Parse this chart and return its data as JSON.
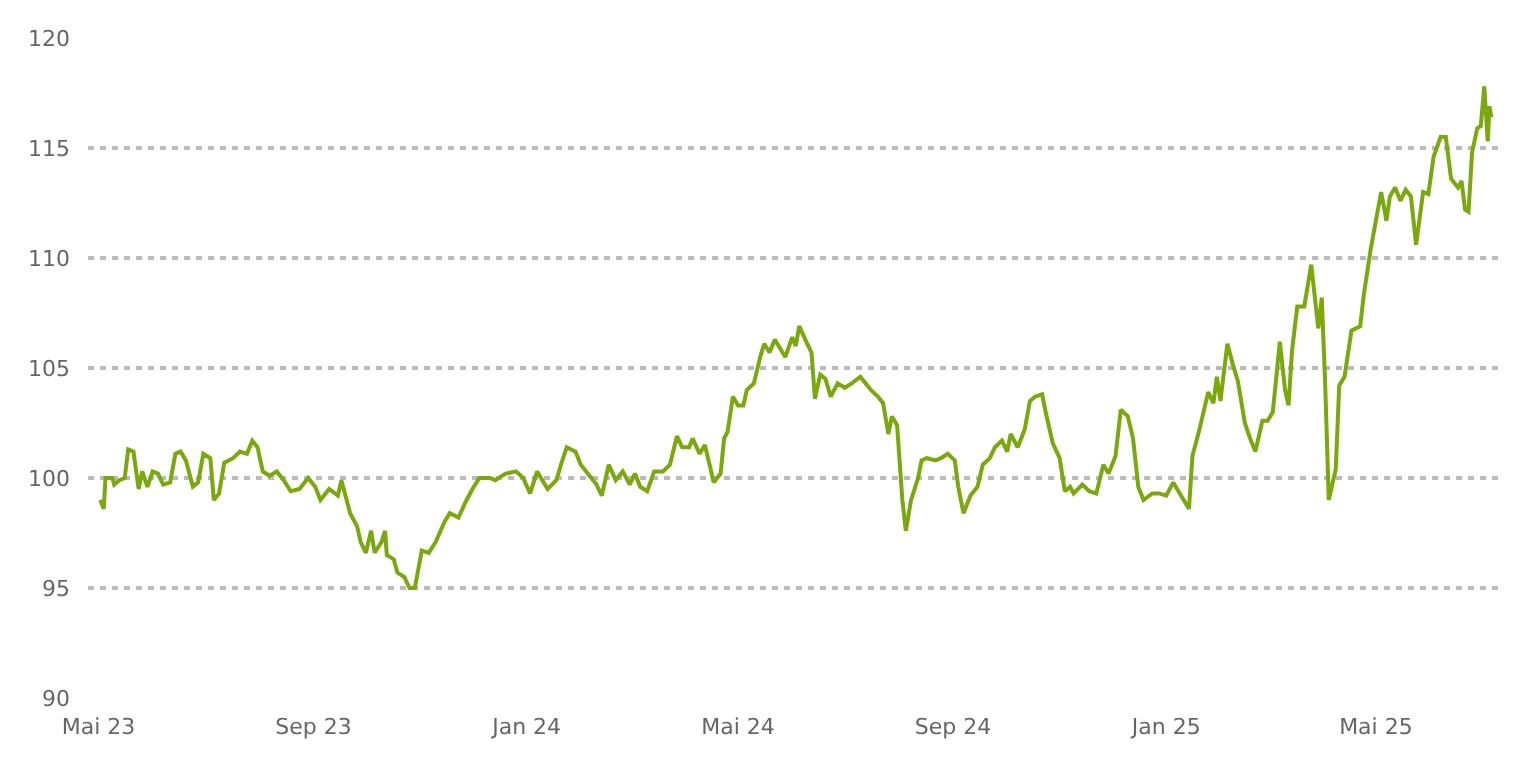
{
  "chart_data": {
    "type": "line",
    "color": "#7aa80e",
    "grid": "y",
    "legend": false,
    "line_style": "solid",
    "marker": "none",
    "xlim": [
      "2023-04-25",
      "2025-07-11"
    ],
    "xticks": [
      {
        "value": "2023-05-01",
        "label": "Mai 23"
      },
      {
        "value": "2023-09-01",
        "label": "Sep 23"
      },
      {
        "value": "2024-01-01",
        "label": "Jan 24"
      },
      {
        "value": "2024-05-01",
        "label": "Mai 24"
      },
      {
        "value": "2024-09-01",
        "label": "Sep 24"
      },
      {
        "value": "2025-01-01",
        "label": "Jan 25"
      },
      {
        "value": "2025-05-01",
        "label": "Mai 25"
      }
    ],
    "ylim": [
      90,
      120
    ],
    "yticks": [
      90,
      95,
      100,
      105,
      110,
      115,
      120
    ],
    "x": [
      "2023-05-02",
      "2023-05-04",
      "2023-05-05",
      "2023-05-09",
      "2023-05-10",
      "2023-05-13",
      "2023-05-16",
      "2023-05-18",
      "2023-05-21",
      "2023-05-24",
      "2023-05-26",
      "2023-05-29",
      "2023-06-01",
      "2023-06-04",
      "2023-06-07",
      "2023-06-11",
      "2023-06-14",
      "2023-06-17",
      "2023-06-20",
      "2023-06-24",
      "2023-06-27",
      "2023-06-30",
      "2023-07-04",
      "2023-07-06",
      "2023-07-09",
      "2023-07-12",
      "2023-07-17",
      "2023-07-21",
      "2023-07-25",
      "2023-07-28",
      "2023-07-31",
      "2023-08-03",
      "2023-08-07",
      "2023-08-11",
      "2023-08-15",
      "2023-08-19",
      "2023-08-24",
      "2023-08-29",
      "2023-09-02",
      "2023-09-05",
      "2023-09-10",
      "2023-09-15",
      "2023-09-17",
      "2023-09-19",
      "2023-09-22",
      "2023-09-26",
      "2023-09-28",
      "2023-10-01",
      "2023-10-04",
      "2023-10-06",
      "2023-10-10",
      "2023-10-12",
      "2023-10-13",
      "2023-10-17",
      "2023-10-19",
      "2023-10-23",
      "2023-10-26",
      "2023-10-29",
      "2023-11-02",
      "2023-11-06",
      "2023-11-10",
      "2023-11-15",
      "2023-11-18",
      "2023-11-23",
      "2023-11-27",
      "2023-12-01",
      "2023-12-05",
      "2023-12-11",
      "2023-12-14",
      "2023-12-20",
      "2023-12-26",
      "2023-12-30",
      "2024-01-03",
      "2024-01-07",
      "2024-01-13",
      "2024-01-18",
      "2024-01-21",
      "2024-01-24",
      "2024-01-29",
      "2024-02-01",
      "2024-02-06",
      "2024-02-10",
      "2024-02-13",
      "2024-02-17",
      "2024-02-21",
      "2024-02-25",
      "2024-02-29",
      "2024-03-03",
      "2024-03-06",
      "2024-03-10",
      "2024-03-14",
      "2024-03-19",
      "2024-03-23",
      "2024-03-27",
      "2024-03-30",
      "2024-04-03",
      "2024-04-05",
      "2024-04-09",
      "2024-04-12",
      "2024-04-15",
      "2024-04-17",
      "2024-04-21",
      "2024-04-23",
      "2024-04-25",
      "2024-04-28",
      "2024-05-01",
      "2024-05-04",
      "2024-05-06",
      "2024-05-10",
      "2024-05-14",
      "2024-05-16",
      "2024-05-19",
      "2024-05-22",
      "2024-05-25",
      "2024-05-28",
      "2024-06-01",
      "2024-06-03",
      "2024-06-05",
      "2024-06-09",
      "2024-06-12",
      "2024-06-14",
      "2024-06-17",
      "2024-06-20",
      "2024-06-23",
      "2024-06-27",
      "2024-07-01",
      "2024-07-05",
      "2024-07-10",
      "2024-07-12",
      "2024-07-16",
      "2024-07-20",
      "2024-07-23",
      "2024-07-26",
      "2024-07-28",
      "2024-07-31",
      "2024-08-03",
      "2024-08-05",
      "2024-08-08",
      "2024-08-12",
      "2024-08-14",
      "2024-08-17",
      "2024-08-22",
      "2024-08-25",
      "2024-08-29",
      "2024-09-02",
      "2024-09-04",
      "2024-09-07",
      "2024-09-11",
      "2024-09-15",
      "2024-09-18",
      "2024-09-22",
      "2024-09-25",
      "2024-09-29",
      "2024-10-02",
      "2024-10-04",
      "2024-10-08",
      "2024-10-12",
      "2024-10-15",
      "2024-10-18",
      "2024-10-22",
      "2024-10-24",
      "2024-10-28",
      "2024-11-01",
      "2024-11-04",
      "2024-11-07",
      "2024-11-09",
      "2024-11-14",
      "2024-11-18",
      "2024-11-22",
      "2024-11-26",
      "2024-11-29",
      "2024-12-03",
      "2024-12-06",
      "2024-12-10",
      "2024-12-13",
      "2024-12-16",
      "2024-12-19",
      "2024-12-24",
      "2024-12-28",
      "2025-01-01",
      "2025-01-05",
      "2025-01-08",
      "2025-01-11",
      "2025-01-14",
      "2025-01-16",
      "2025-01-20",
      "2025-01-25",
      "2025-01-28",
      "2025-01-30",
      "2025-02-01",
      "2025-02-05",
      "2025-02-08",
      "2025-02-11",
      "2025-02-15",
      "2025-02-18",
      "2025-02-21",
      "2025-02-25",
      "2025-02-28",
      "2025-03-03",
      "2025-03-07",
      "2025-03-10",
      "2025-03-12",
      "2025-03-14",
      "2025-03-17",
      "2025-03-21",
      "2025-03-25",
      "2025-03-29",
      "2025-03-31",
      "2025-04-02",
      "2025-04-04",
      "2025-04-08",
      "2025-04-10",
      "2025-04-13",
      "2025-04-17",
      "2025-04-22",
      "2025-04-24",
      "2025-04-28",
      "2025-05-01",
      "2025-05-04",
      "2025-05-07",
      "2025-05-09",
      "2025-05-12",
      "2025-05-15",
      "2025-05-18",
      "2025-05-21",
      "2025-05-24",
      "2025-05-28",
      "2025-05-31",
      "2025-06-03",
      "2025-06-07",
      "2025-06-10",
      "2025-06-13",
      "2025-06-17",
      "2025-06-19",
      "2025-06-21",
      "2025-06-23",
      "2025-06-25",
      "2025-06-28",
      "2025-06-30",
      "2025-07-02",
      "2025-07-04",
      "2025-07-05",
      "2025-07-06"
    ],
    "values": [
      99.0,
      98.6,
      100.0,
      100.0,
      99.7,
      99.9,
      100.0,
      101.3,
      101.2,
      99.5,
      100.3,
      99.6,
      100.3,
      100.2,
      99.7,
      99.8,
      101.1,
      101.2,
      100.8,
      99.6,
      99.8,
      101.1,
      100.9,
      99.0,
      99.3,
      100.7,
      100.9,
      101.2,
      101.1,
      101.7,
      101.4,
      100.3,
      100.1,
      100.3,
      99.9,
      99.4,
      99.5,
      100.0,
      99.6,
      99.0,
      99.5,
      99.2,
      99.9,
      99.3,
      98.4,
      97.8,
      97.1,
      96.6,
      97.6,
      96.6,
      97.1,
      97.6,
      96.5,
      96.3,
      95.7,
      95.5,
      95.0,
      95.0,
      96.7,
      96.6,
      97.1,
      98.0,
      98.4,
      98.2,
      98.9,
      99.5,
      100.0,
      100.0,
      99.9,
      100.2,
      100.3,
      100.0,
      99.3,
      100.3,
      99.5,
      99.9,
      100.7,
      101.4,
      101.2,
      100.6,
      100.1,
      99.7,
      99.2,
      100.6,
      99.9,
      100.3,
      99.7,
      100.2,
      99.6,
      99.4,
      100.3,
      100.3,
      100.6,
      101.9,
      101.4,
      101.4,
      101.8,
      101.1,
      101.5,
      100.5,
      99.8,
      100.2,
      101.8,
      102.1,
      103.7,
      103.3,
      103.3,
      104.0,
      104.3,
      105.6,
      106.1,
      105.7,
      106.3,
      105.9,
      105.5,
      106.4,
      106.0,
      106.9,
      106.2,
      105.7,
      103.6,
      104.7,
      104.5,
      103.7,
      104.3,
      104.1,
      104.3,
      104.6,
      104.4,
      104.0,
      103.7,
      103.4,
      102.0,
      102.8,
      102.4,
      99.0,
      97.6,
      99.0,
      100.0,
      100.8,
      100.9,
      100.8,
      100.9,
      101.1,
      100.8,
      99.6,
      98.4,
      99.2,
      99.6,
      100.6,
      100.9,
      101.4,
      101.7,
      101.2,
      102.0,
      101.4,
      102.2,
      103.5,
      103.7,
      103.8,
      103.0,
      101.6,
      100.9,
      99.4,
      99.6,
      99.3,
      99.7,
      99.4,
      99.3,
      100.6,
      100.2,
      101.0,
      103.1,
      102.8,
      101.8,
      99.6,
      99.0,
      99.3,
      99.3,
      99.2,
      99.8,
      99.4,
      99.0,
      98.6,
      101.0,
      102.2,
      103.9,
      103.4,
      104.6,
      103.5,
      106.1,
      105.2,
      104.4,
      102.5,
      101.8,
      101.2,
      102.6,
      102.6,
      103.0,
      106.2,
      104.0,
      103.3,
      105.8,
      107.8,
      107.8,
      109.7,
      106.8,
      108.2,
      104.2,
      99.0,
      100.4,
      104.2,
      104.6,
      106.7,
      106.9,
      108.3,
      110.4,
      111.7,
      113.0,
      111.7,
      112.8,
      113.2,
      112.6,
      113.1,
      112.8,
      110.6,
      113.0,
      112.9,
      114.6,
      115.5,
      115.5,
      113.6,
      113.2,
      113.5,
      112.2,
      112.1,
      114.8,
      115.9,
      116.0,
      117.8,
      115.3,
      116.9,
      116.4
    ]
  }
}
